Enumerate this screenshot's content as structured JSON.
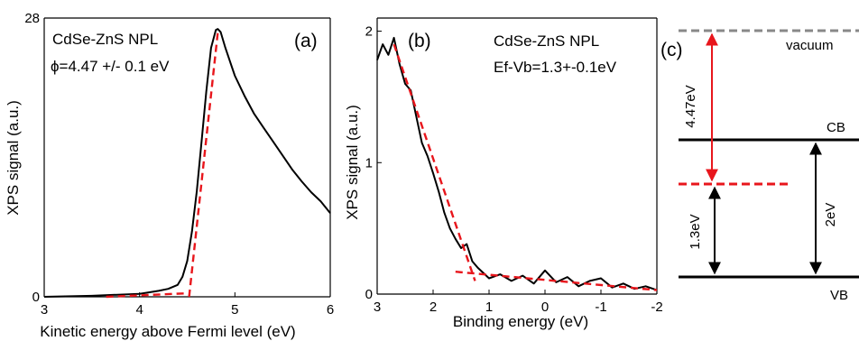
{
  "chart_data": [
    {
      "panel": "(a)",
      "type": "line",
      "xlabel": "Kinetic energy above Fermi level (eV)",
      "ylabel": "XPS signal (a.u.)",
      "xlim": [
        3,
        6
      ],
      "ylim": [
        0,
        28
      ],
      "xticks": [
        "3",
        "4",
        "5",
        "6"
      ],
      "yticks": [
        "0",
        "28"
      ],
      "annotations": [
        "CdSe-ZnS NPL",
        "ϕ=4.47 +/- 0.1 eV"
      ],
      "series": [
        {
          "color": "#000000",
          "style": "solid",
          "x": [
            3.0,
            3.5,
            4.0,
            4.2,
            4.3,
            4.4,
            4.45,
            4.5,
            4.55,
            4.6,
            4.65,
            4.7,
            4.75,
            4.8,
            4.82,
            4.85,
            4.9,
            5.0,
            5.1,
            5.2,
            5.3,
            5.4,
            5.5,
            5.6,
            5.7,
            5.8,
            5.9,
            6.0
          ],
          "y": [
            0.0,
            0.1,
            0.3,
            0.6,
            0.8,
            1.2,
            2.0,
            3.6,
            6.6,
            10.6,
            15.6,
            20.6,
            25.0,
            26.8,
            26.9,
            26.6,
            25.0,
            22.2,
            20.2,
            18.4,
            17.0,
            15.6,
            14.2,
            12.8,
            11.6,
            10.5,
            9.6,
            8.4
          ]
        },
        {
          "color": "#e8161c",
          "style": "dashed",
          "x": [
            3.65,
            4.5
          ],
          "y": [
            0.0,
            0.35
          ]
        },
        {
          "color": "#e8161c",
          "style": "dashed",
          "x": [
            4.52,
            4.82
          ],
          "y": [
            0.0,
            26.5
          ]
        }
      ]
    },
    {
      "panel": "(b)",
      "type": "line",
      "xlabel": "Binding energy (eV)",
      "ylabel": "XPS signal (a.u.)",
      "xlim": [
        3,
        -2
      ],
      "ylim": [
        0,
        2.1
      ],
      "xticks": [
        "3",
        "2",
        "1",
        "0",
        "-1",
        "-2"
      ],
      "yticks": [
        "0",
        "1",
        "2"
      ],
      "annotations": [
        "CdSe-ZnS NPL",
        "Ef-Vb=1.3+-0.1eV"
      ],
      "series": [
        {
          "color": "#000000",
          "style": "solid",
          "x": [
            3.0,
            2.9,
            2.8,
            2.7,
            2.6,
            2.5,
            2.4,
            2.3,
            2.2,
            2.1,
            2.0,
            1.9,
            1.8,
            1.7,
            1.6,
            1.5,
            1.4,
            1.3,
            1.2,
            1.0,
            0.8,
            0.6,
            0.4,
            0.2,
            0.0,
            -0.2,
            -0.4,
            -0.6,
            -0.8,
            -1.0,
            -1.2,
            -1.4,
            -1.6,
            -1.8,
            -2.0
          ],
          "y": [
            1.78,
            1.9,
            1.82,
            1.95,
            1.75,
            1.6,
            1.55,
            1.35,
            1.15,
            1.05,
            0.92,
            0.78,
            0.62,
            0.5,
            0.42,
            0.35,
            0.38,
            0.25,
            0.2,
            0.12,
            0.15,
            0.1,
            0.14,
            0.08,
            0.18,
            0.09,
            0.13,
            0.06,
            0.1,
            0.12,
            0.05,
            0.08,
            0.04,
            0.06,
            0.03
          ]
        },
        {
          "color": "#e8161c",
          "style": "dashed",
          "x": [
            2.7,
            1.25
          ],
          "y": [
            1.9,
            0.1
          ]
        },
        {
          "color": "#e8161c",
          "style": "dashed",
          "x": [
            1.6,
            -2.0
          ],
          "y": [
            0.17,
            0.03
          ]
        }
      ]
    },
    {
      "panel": "(c)",
      "type": "diagram",
      "levels": [
        {
          "label": "vacuum",
          "color": "#888888",
          "style": "dashed"
        },
        {
          "label": "CB",
          "color": "#000000",
          "style": "solid"
        },
        {
          "label": "",
          "color": "#e8161c",
          "style": "dashed"
        },
        {
          "label": "VB",
          "color": "#000000",
          "style": "solid"
        }
      ],
      "arrows": [
        {
          "label": "4.47eV",
          "color": "#e8161c"
        },
        {
          "label": "1.3eV",
          "color": "#000000"
        },
        {
          "label": "2eV",
          "color": "#000000"
        }
      ]
    }
  ]
}
